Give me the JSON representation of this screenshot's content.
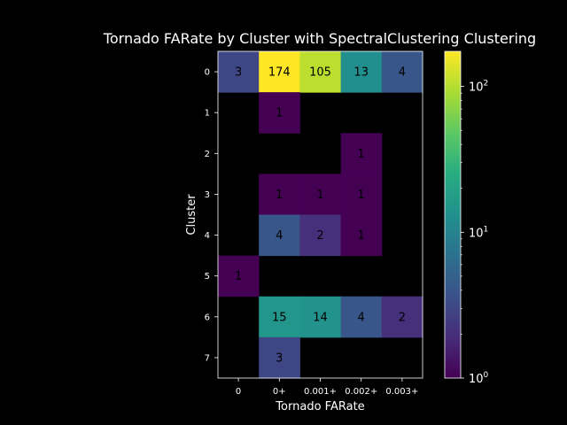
{
  "chart_data": {
    "type": "heatmap",
    "title": "Tornado FARate by Cluster with SpectralClustering Clustering",
    "xlabel": "Tornado FARate",
    "ylabel": "Cluster",
    "x_categories": [
      "0",
      "0+",
      "0.001+",
      "0.002+",
      "0.003+"
    ],
    "y_categories": [
      "0",
      "1",
      "2",
      "3",
      "4",
      "5",
      "6",
      "7"
    ],
    "values": [
      [
        3,
        174,
        105,
        13,
        4
      ],
      [
        null,
        1,
        null,
        null,
        null
      ],
      [
        null,
        null,
        null,
        1,
        null
      ],
      [
        null,
        1,
        1,
        1,
        null
      ],
      [
        null,
        4,
        2,
        1,
        null
      ],
      [
        1,
        null,
        null,
        null,
        null
      ],
      [
        null,
        15,
        14,
        4,
        2
      ],
      [
        null,
        3,
        null,
        null,
        null
      ]
    ],
    "colorbar": {
      "scale": "log",
      "colormap": "viridis",
      "range": [
        1,
        174
      ],
      "ticks": [
        {
          "value": 1,
          "base": "10",
          "exp": "0"
        },
        {
          "value": 10,
          "base": "10",
          "exp": "1"
        },
        {
          "value": 100,
          "base": "10",
          "exp": "2"
        }
      ]
    },
    "background": "#000000",
    "grid": false,
    "legend": "colorbar-right"
  }
}
